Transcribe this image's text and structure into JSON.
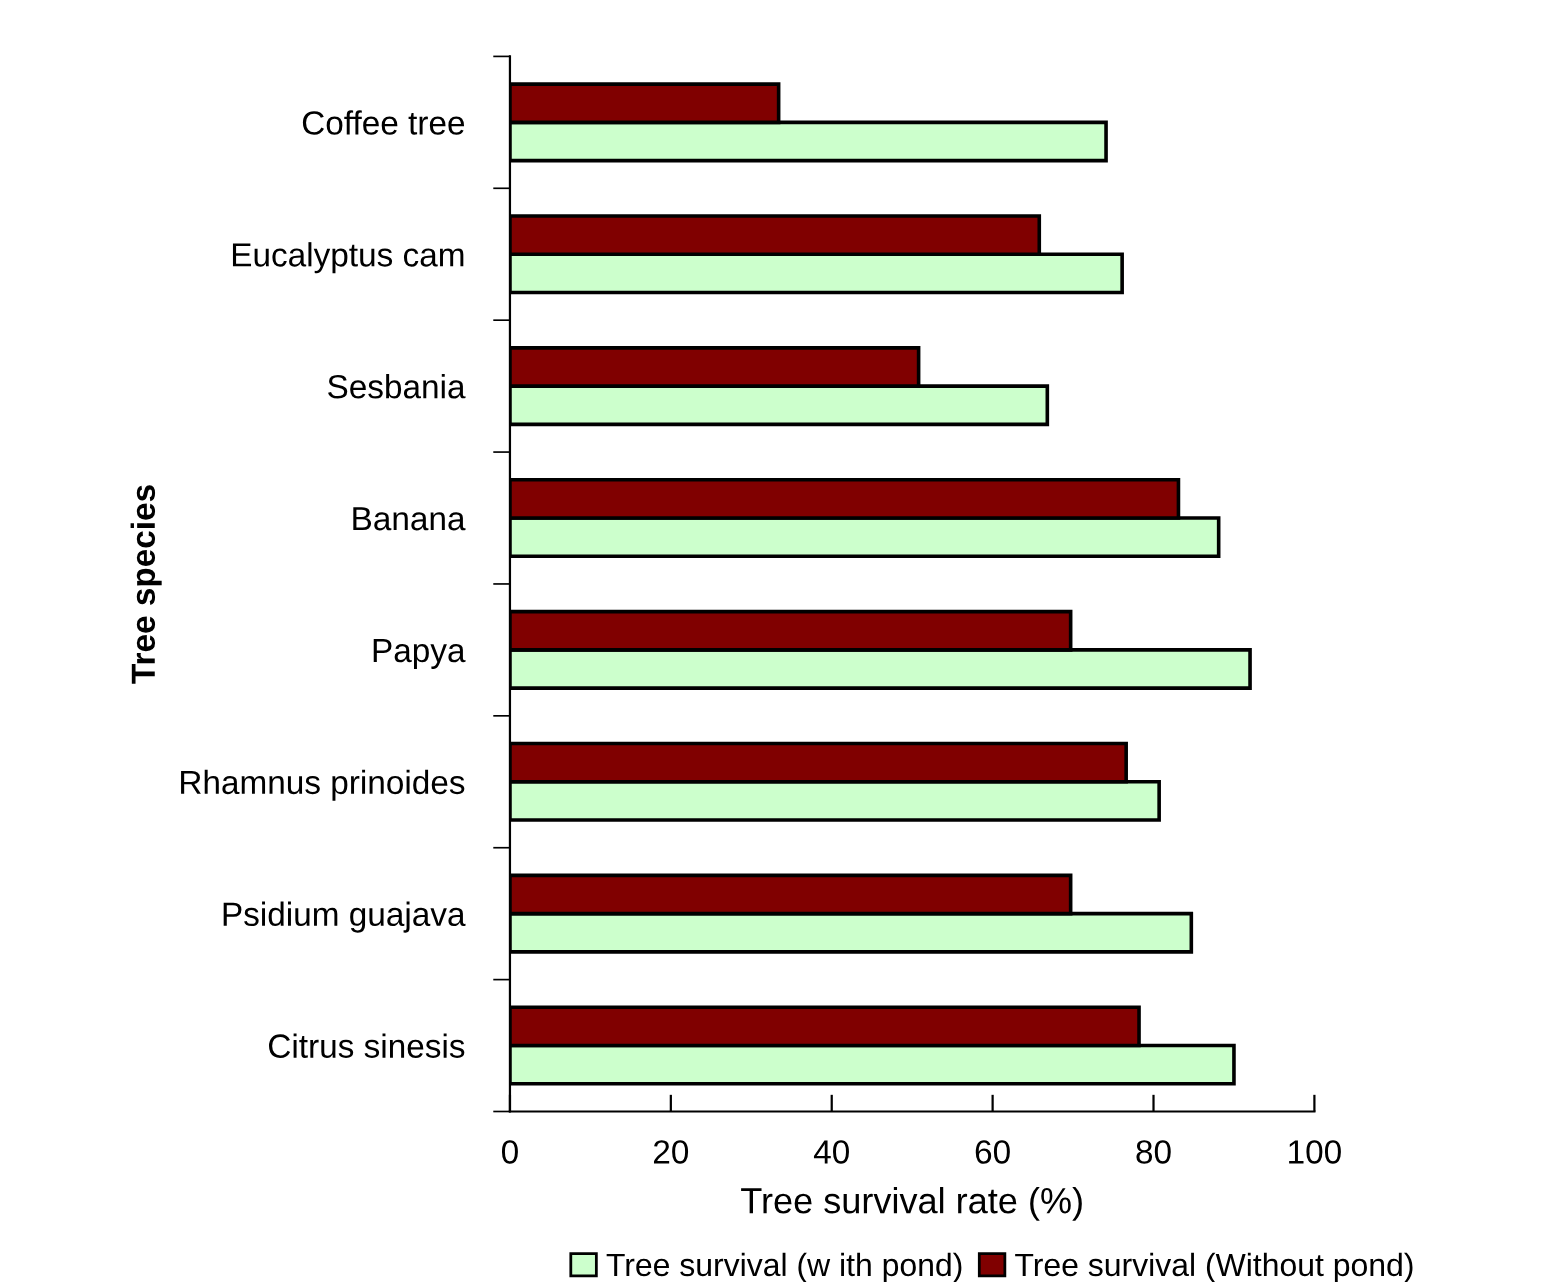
{
  "chart_data": {
    "type": "bar",
    "orientation": "horizontal",
    "xlabel": "Tree survival rate (%)",
    "ylabel": "Tree species",
    "categories": [
      "Coffee tree",
      "Eucalyptus cam",
      "Sesbania",
      "Banana",
      "Papya",
      "Rhamnus prinoides",
      "Psidium guajava",
      "Citrus sinesis"
    ],
    "series": [
      {
        "name": "Tree survival (w ith pond)",
        "color": "#ccffcc",
        "values": [
          74.1,
          76.1,
          66.8,
          88.1,
          92.0,
          80.7,
          84.7,
          90.0
        ]
      },
      {
        "name": "Tree survival (Without pond)",
        "color": "#800000",
        "values": [
          33.4,
          65.8,
          50.8,
          83.1,
          69.7,
          76.6,
          69.7,
          78.2
        ]
      }
    ],
    "xlim": [
      0,
      100
    ],
    "xticks": [
      0,
      20,
      40,
      60,
      80,
      100
    ],
    "grid": false,
    "legend": "bottom"
  }
}
